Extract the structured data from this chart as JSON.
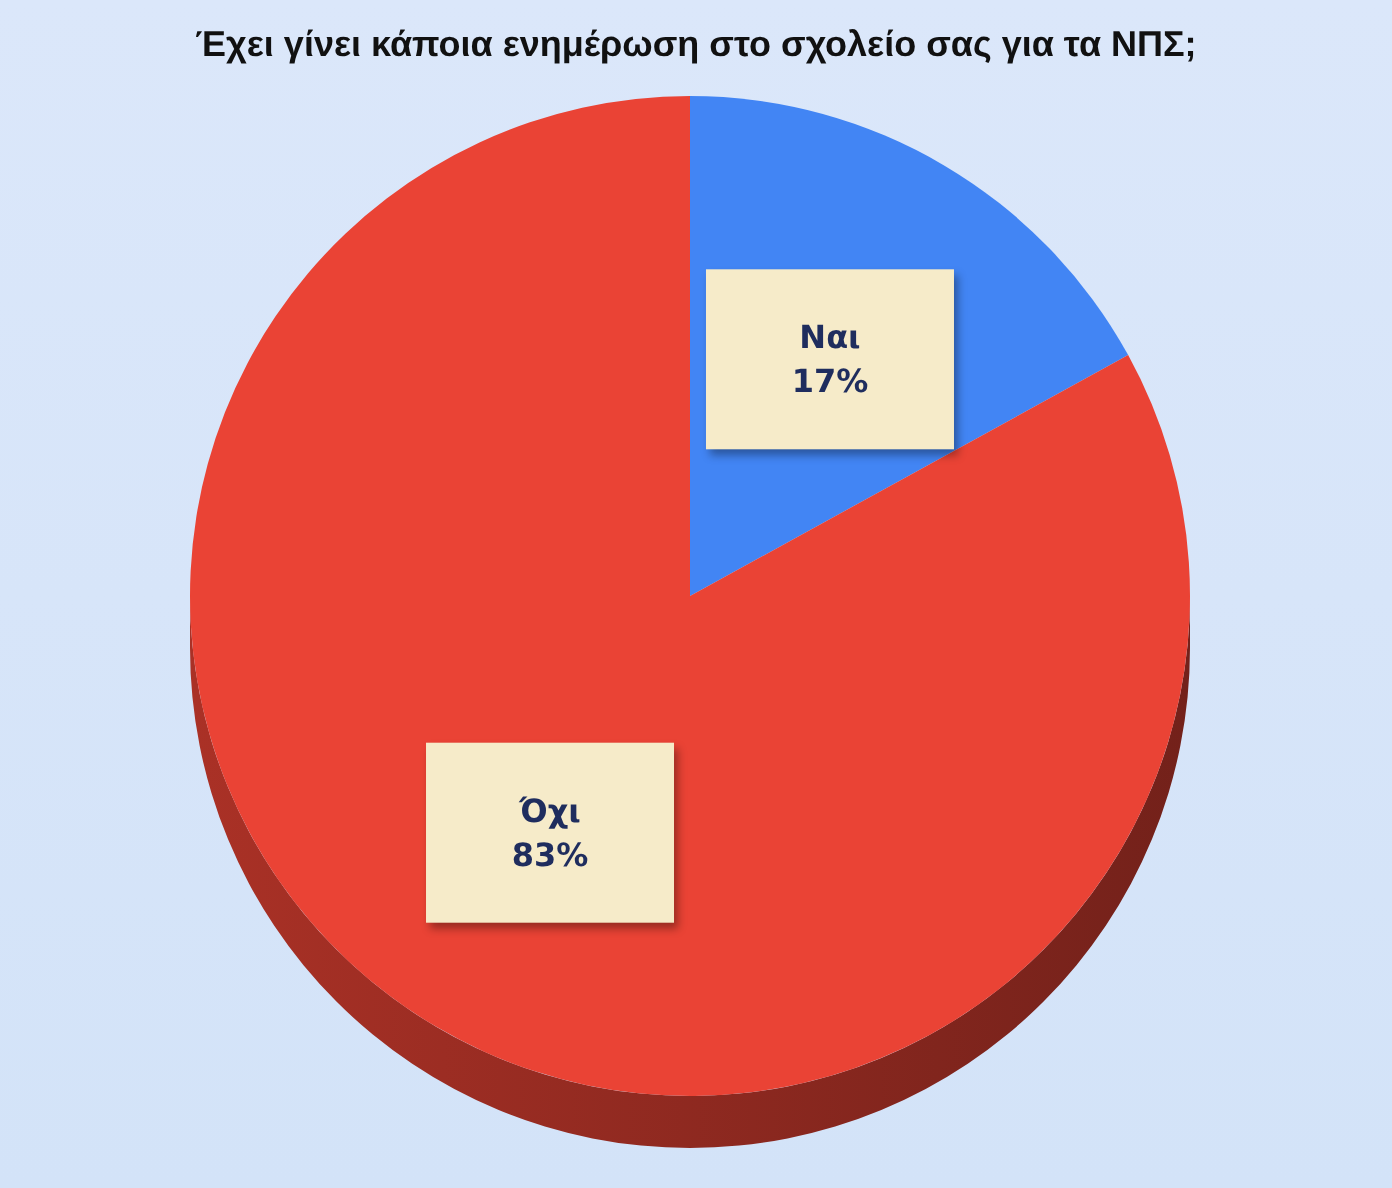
{
  "chart_data": {
    "type": "pie",
    "title": "Έχει γίνει κάποια ενημέρωση στο σχολείο σας για τα ΝΠΣ;",
    "categories": [
      "Ναι",
      "Όχι"
    ],
    "values": [
      17,
      83
    ],
    "colors": [
      "#4285f4",
      "#ea4335"
    ],
    "value_labels": [
      "17%",
      "83%"
    ]
  }
}
